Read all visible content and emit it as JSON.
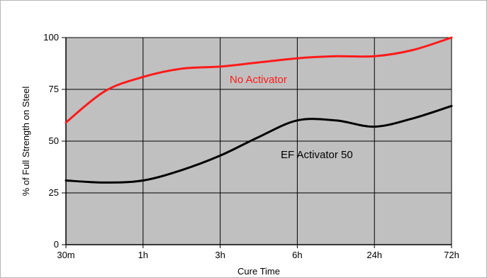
{
  "chart_data": {
    "type": "line",
    "title": "",
    "xlabel": "Cure Time",
    "ylabel": "% of Full Strength on Steel",
    "categories": [
      "30m",
      "1h",
      "3h",
      "6h",
      "24h",
      "72h"
    ],
    "yticks": [
      0,
      25,
      50,
      75,
      100
    ],
    "ylim": [
      0,
      100
    ],
    "grid": true,
    "legend": "none",
    "plot_background": "#c0c0c0",
    "series": [
      {
        "name": "No Activator",
        "color": "#ff1a1a",
        "x": [
          0,
          0.5,
          1,
          1.5,
          2,
          2.5,
          3,
          3.5,
          4,
          4.5,
          5
        ],
        "values": [
          59,
          74,
          81,
          85,
          86,
          88,
          90,
          91,
          91,
          94,
          100
        ]
      },
      {
        "name": "EF Activator 50",
        "color": "#000000",
        "x": [
          0,
          0.5,
          1,
          1.5,
          2,
          2.5,
          3,
          3.5,
          4,
          4.5,
          5
        ],
        "values": [
          31,
          30,
          31,
          36,
          43,
          52,
          60,
          60,
          57,
          61,
          67
        ]
      }
    ]
  }
}
